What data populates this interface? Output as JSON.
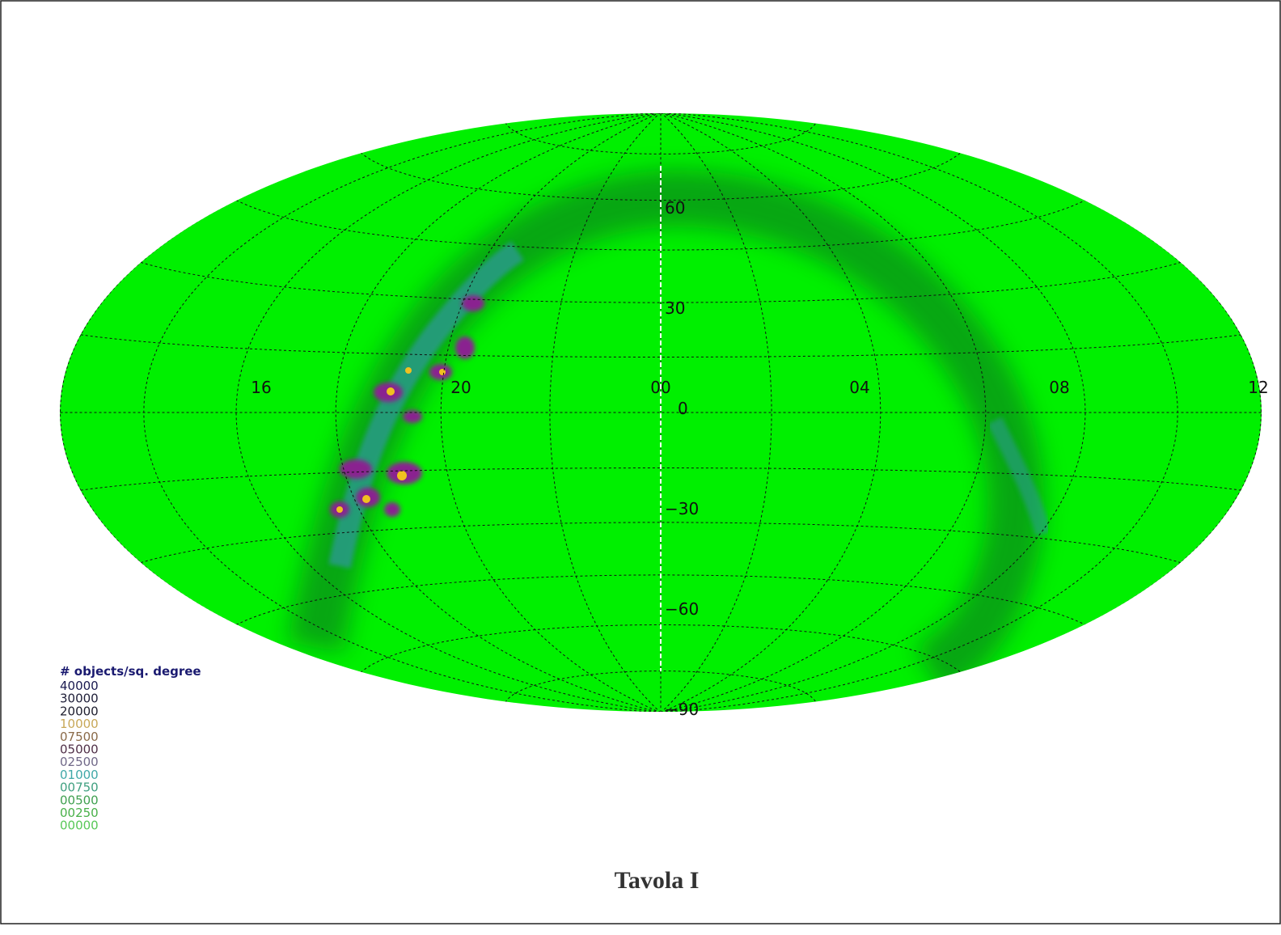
{
  "map": {
    "ra_labels": [
      "16",
      "20",
      "00",
      "04",
      "08",
      "12"
    ],
    "dec_labels": [
      "60",
      "30",
      "0",
      "−30",
      "−60",
      "−90"
    ],
    "legend": {
      "title": "# objects/sq. degree",
      "entries": [
        {
          "label": "40000",
          "color": "#1a1a50"
        },
        {
          "label": "30000",
          "color": "#20203a"
        },
        {
          "label": "20000",
          "color": "#202030"
        },
        {
          "label": "10000",
          "color": "#c8a858"
        },
        {
          "label": "07500",
          "color": "#8a6a48"
        },
        {
          "label": "05000",
          "color": "#503048"
        },
        {
          "label": "02500",
          "color": "#706888"
        },
        {
          "label": "01000",
          "color": "#40a8a8"
        },
        {
          "label": "00750",
          "color": "#40a080"
        },
        {
          "label": "00500",
          "color": "#40a050"
        },
        {
          "label": "00250",
          "color": "#48b048"
        },
        {
          "label": "00000",
          "color": "#58c858"
        }
      ]
    }
  },
  "caption": "Tavola I"
}
